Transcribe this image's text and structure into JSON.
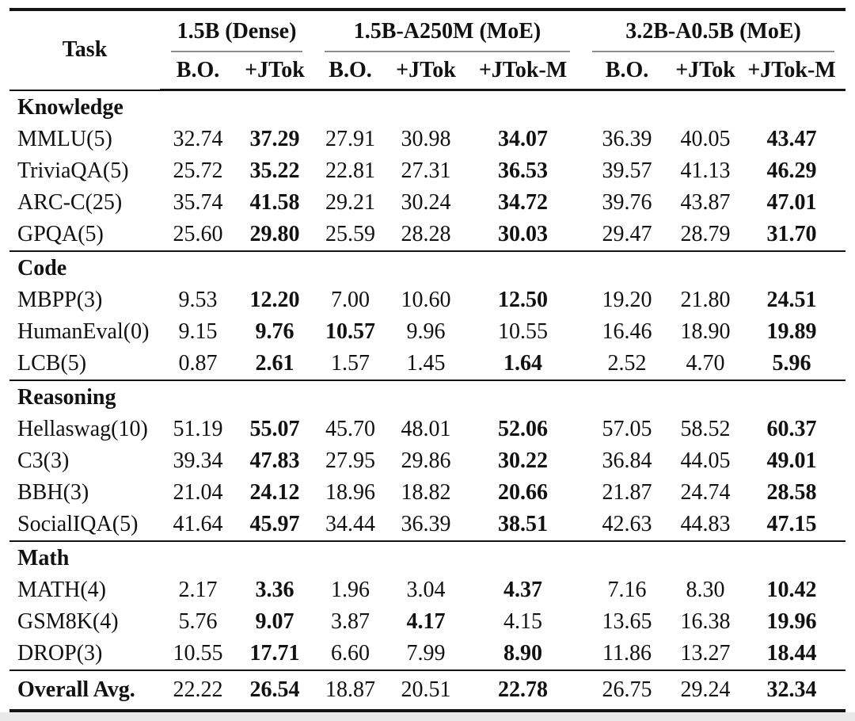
{
  "table": {
    "task_header": "Task",
    "groups": [
      {
        "label": "1.5B (Dense)",
        "subcols": [
          "B.O.",
          "+JTok"
        ]
      },
      {
        "label": "1.5B-A250M (MoE)",
        "subcols": [
          "B.O.",
          "+JTok",
          "+JTok-M"
        ]
      },
      {
        "label": "3.2B-A0.5B (MoE)",
        "subcols": [
          "B.O.",
          "+JTok",
          "+JTok-M"
        ]
      }
    ],
    "sections": [
      {
        "name": "Knowledge",
        "rows": [
          {
            "task": "MMLU(5)",
            "values": [
              "32.74",
              "37.29",
              "27.91",
              "30.98",
              "34.07",
              "36.39",
              "40.05",
              "43.47"
            ],
            "bold": [
              1,
              4,
              7
            ]
          },
          {
            "task": "TriviaQA(5)",
            "values": [
              "25.72",
              "35.22",
              "22.81",
              "27.31",
              "36.53",
              "39.57",
              "41.13",
              "46.29"
            ],
            "bold": [
              1,
              4,
              7
            ]
          },
          {
            "task": "ARC-C(25)",
            "values": [
              "35.74",
              "41.58",
              "29.21",
              "30.24",
              "34.72",
              "39.76",
              "43.87",
              "47.01"
            ],
            "bold": [
              1,
              4,
              7
            ]
          },
          {
            "task": "GPQA(5)",
            "values": [
              "25.60",
              "29.80",
              "25.59",
              "28.28",
              "30.03",
              "29.47",
              "28.79",
              "31.70"
            ],
            "bold": [
              1,
              4,
              7
            ]
          }
        ]
      },
      {
        "name": "Code",
        "rows": [
          {
            "task": "MBPP(3)",
            "values": [
              "9.53",
              "12.20",
              "7.00",
              "10.60",
              "12.50",
              "19.20",
              "21.80",
              "24.51"
            ],
            "bold": [
              1,
              4,
              7
            ]
          },
          {
            "task": "HumanEval(0)",
            "values": [
              "9.15",
              "9.76",
              "10.57",
              "9.96",
              "10.55",
              "16.46",
              "18.90",
              "19.89"
            ],
            "bold": [
              1,
              2,
              7
            ]
          },
          {
            "task": "LCB(5)",
            "values": [
              "0.87",
              "2.61",
              "1.57",
              "1.45",
              "1.64",
              "2.52",
              "4.70",
              "5.96"
            ],
            "bold": [
              1,
              4,
              7
            ]
          }
        ]
      },
      {
        "name": "Reasoning",
        "rows": [
          {
            "task": "Hellaswag(10)",
            "values": [
              "51.19",
              "55.07",
              "45.70",
              "48.01",
              "52.06",
              "57.05",
              "58.52",
              "60.37"
            ],
            "bold": [
              1,
              4,
              7
            ]
          },
          {
            "task": "C3(3)",
            "values": [
              "39.34",
              "47.83",
              "27.95",
              "29.86",
              "30.22",
              "36.84",
              "44.05",
              "49.01"
            ],
            "bold": [
              1,
              4,
              7
            ]
          },
          {
            "task": "BBH(3)",
            "values": [
              "21.04",
              "24.12",
              "18.96",
              "18.82",
              "20.66",
              "21.87",
              "24.74",
              "28.58"
            ],
            "bold": [
              1,
              4,
              7
            ]
          },
          {
            "task": "SocialIQA(5)",
            "values": [
              "41.64",
              "45.97",
              "34.44",
              "36.39",
              "38.51",
              "42.63",
              "44.83",
              "47.15"
            ],
            "bold": [
              1,
              4,
              7
            ]
          }
        ]
      },
      {
        "name": "Math",
        "rows": [
          {
            "task": "MATH(4)",
            "values": [
              "2.17",
              "3.36",
              "1.96",
              "3.04",
              "4.37",
              "7.16",
              "8.30",
              "10.42"
            ],
            "bold": [
              1,
              4,
              7
            ]
          },
          {
            "task": "GSM8K(4)",
            "values": [
              "5.76",
              "9.07",
              "3.87",
              "4.17",
              "4.15",
              "13.65",
              "16.38",
              "19.96"
            ],
            "bold": [
              1,
              3,
              7
            ]
          },
          {
            "task": "DROP(3)",
            "values": [
              "10.55",
              "17.71",
              "6.60",
              "7.99",
              "8.90",
              "11.86",
              "13.27",
              "18.44"
            ],
            "bold": [
              1,
              4,
              7
            ]
          }
        ]
      }
    ],
    "footer": {
      "task": "Overall Avg.",
      "values": [
        "22.22",
        "26.54",
        "18.87",
        "20.51",
        "22.78",
        "26.75",
        "29.24",
        "32.34"
      ],
      "bold": [
        1,
        4,
        7
      ]
    },
    "colors": {
      "rule_dark": "#141414",
      "rule_gray": "#8f8f8f",
      "text": "#111111",
      "background": "#ffffff"
    }
  }
}
